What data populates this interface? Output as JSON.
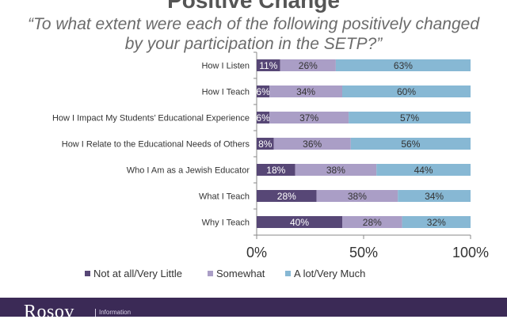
{
  "header": {
    "title": "Positive Change",
    "subtitle": "“To what extent were each of the following positively changed by your participation in the SETP?”"
  },
  "footer": {
    "brand": "Rosov",
    "tag": "Information"
  },
  "colors": {
    "series": [
      "#574776",
      "#aa9ec6",
      "#87b8d4"
    ],
    "label_dark": "#ffffff",
    "label_light": "#333333"
  },
  "chart_data": {
    "type": "bar",
    "orientation": "horizontal-stacked-100",
    "categories": [
      "How I Listen",
      "How I Teach",
      "How I Impact My Students’ Educational Experience",
      "How I Relate to the Educational Needs of Others",
      "Who I Am as a Jewish Educator",
      "What I Teach",
      "Why I Teach"
    ],
    "series": [
      {
        "name": "Not at all/Very Little",
        "values": [
          11,
          6,
          6,
          8,
          18,
          28,
          40
        ]
      },
      {
        "name": "Somewhat",
        "values": [
          26,
          34,
          37,
          36,
          38,
          38,
          28
        ]
      },
      {
        "name": "A lot/Very Much",
        "values": [
          63,
          60,
          57,
          56,
          44,
          34,
          32
        ]
      }
    ],
    "value_suffix": "%",
    "xlim": [
      0,
      100
    ],
    "xticks": [
      0,
      50,
      100
    ],
    "xtick_labels": [
      "0%",
      "50%",
      "100%"
    ],
    "legend_position": "bottom"
  }
}
